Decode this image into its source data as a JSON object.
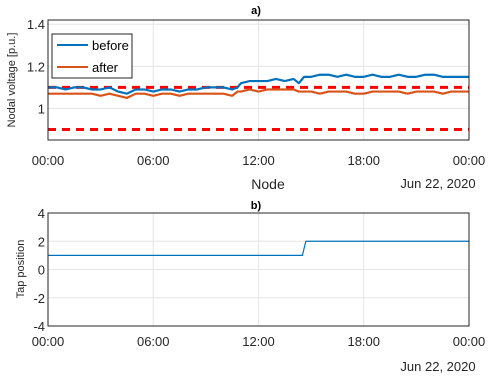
{
  "chart_data": [
    {
      "type": "line",
      "title": "a)",
      "xlabel": "Node",
      "ylabel": "Nodal voltage [p.u.]",
      "date_label": "Jun 22, 2020",
      "x_ticks": [
        "00:00",
        "06:00",
        "12:00",
        "18:00",
        "00:00"
      ],
      "y_ticks": [
        "1",
        "1.2",
        "1.4"
      ],
      "xlim_hours": [
        0,
        24
      ],
      "ylim": [
        0.85,
        1.42
      ],
      "grid": true,
      "legend": {
        "position": "top-left"
      },
      "colors": {
        "before": "#0072BD",
        "after": "#D95319",
        "limits": "#FF0000"
      },
      "x_hours": [
        0,
        0.5,
        1,
        1.5,
        2,
        2.5,
        3,
        3.5,
        4,
        4.5,
        5,
        5.5,
        6,
        6.5,
        7,
        7.5,
        8,
        8.5,
        9,
        9.5,
        10,
        10.5,
        10.8,
        11,
        11.5,
        12,
        12.5,
        13,
        13.5,
        14,
        14.3,
        14.6,
        15,
        15.5,
        16,
        16.5,
        17,
        17.5,
        18,
        18.5,
        19,
        19.5,
        20,
        20.5,
        21,
        21.5,
        22,
        22.5,
        23,
        23.5,
        24
      ],
      "series": [
        {
          "name": "before",
          "values": [
            1.1,
            1.1,
            1.09,
            1.1,
            1.1,
            1.09,
            1.09,
            1.1,
            1.08,
            1.07,
            1.09,
            1.09,
            1.08,
            1.09,
            1.09,
            1.08,
            1.09,
            1.09,
            1.1,
            1.1,
            1.1,
            1.09,
            1.1,
            1.12,
            1.13,
            1.13,
            1.13,
            1.14,
            1.13,
            1.14,
            1.12,
            1.15,
            1.15,
            1.16,
            1.16,
            1.15,
            1.16,
            1.15,
            1.15,
            1.16,
            1.15,
            1.15,
            1.16,
            1.15,
            1.15,
            1.16,
            1.16,
            1.15,
            1.15,
            1.15,
            1.15
          ]
        },
        {
          "name": "after",
          "values": [
            1.07,
            1.07,
            1.07,
            1.07,
            1.07,
            1.07,
            1.06,
            1.07,
            1.06,
            1.05,
            1.07,
            1.07,
            1.06,
            1.07,
            1.07,
            1.06,
            1.07,
            1.07,
            1.07,
            1.07,
            1.07,
            1.06,
            1.08,
            1.08,
            1.09,
            1.08,
            1.09,
            1.09,
            1.09,
            1.09,
            1.08,
            1.08,
            1.08,
            1.07,
            1.08,
            1.08,
            1.08,
            1.07,
            1.07,
            1.08,
            1.08,
            1.08,
            1.08,
            1.07,
            1.08,
            1.08,
            1.08,
            1.07,
            1.08,
            1.08,
            1.08
          ]
        }
      ],
      "limit_lines": [
        0.9,
        1.1
      ]
    },
    {
      "type": "line",
      "title": "b)",
      "xlabel": "",
      "ylabel": "Tap position",
      "date_label": "Jun 22, 2020",
      "x_ticks": [
        "00:00",
        "06:00",
        "12:00",
        "18:00",
        "00:00"
      ],
      "y_ticks": [
        "-4",
        "-2",
        "0",
        "2",
        "4"
      ],
      "xlim_hours": [
        0,
        24
      ],
      "ylim": [
        -4,
        4
      ],
      "grid": true,
      "colors": {
        "tap": "#0072BD"
      },
      "x_hours": [
        0,
        14.5,
        14.7,
        24
      ],
      "values": [
        1,
        1,
        2,
        2
      ]
    }
  ]
}
